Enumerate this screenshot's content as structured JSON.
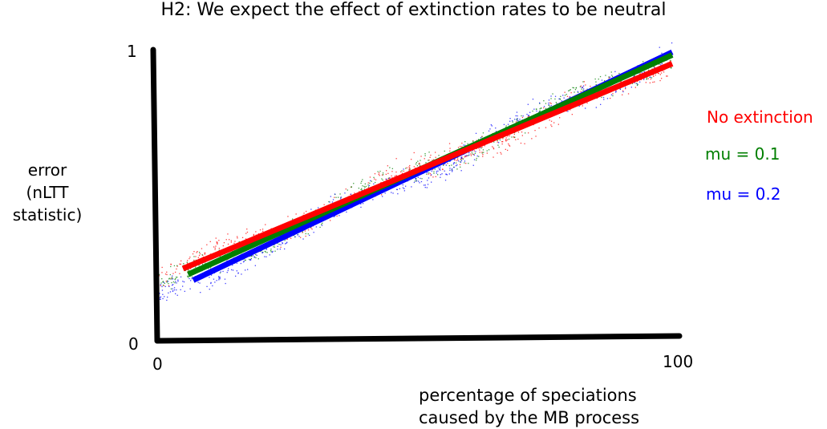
{
  "chart_data": {
    "type": "scatter",
    "title": "H2: We expect the effect of extinction rates to be neutral",
    "xlabel_line1": "percentage of speciations",
    "xlabel_line2": "caused by the MB process",
    "ylabel_line1": "error",
    "ylabel_line2": "(nLTT statistic)",
    "x_ticks": [
      "0",
      "100"
    ],
    "y_ticks": [
      "0",
      "1"
    ],
    "xlim": [
      0,
      100
    ],
    "ylim": [
      0,
      1
    ],
    "grid": false,
    "legend_placement": "right",
    "series": [
      {
        "name": "No extinction",
        "color": "#ff0000",
        "fit": {
          "x": [
            5,
            100
          ],
          "y": [
            0.25,
            0.96
          ]
        }
      },
      {
        "name": "mu = 0.1",
        "color": "#007f00",
        "fit": {
          "x": [
            6,
            100
          ],
          "y": [
            0.23,
            0.99
          ]
        }
      },
      {
        "name": "mu = 0.2",
        "color": "#0000ff",
        "fit": {
          "x": [
            7,
            100
          ],
          "y": [
            0.21,
            1.0
          ]
        }
      }
    ]
  }
}
